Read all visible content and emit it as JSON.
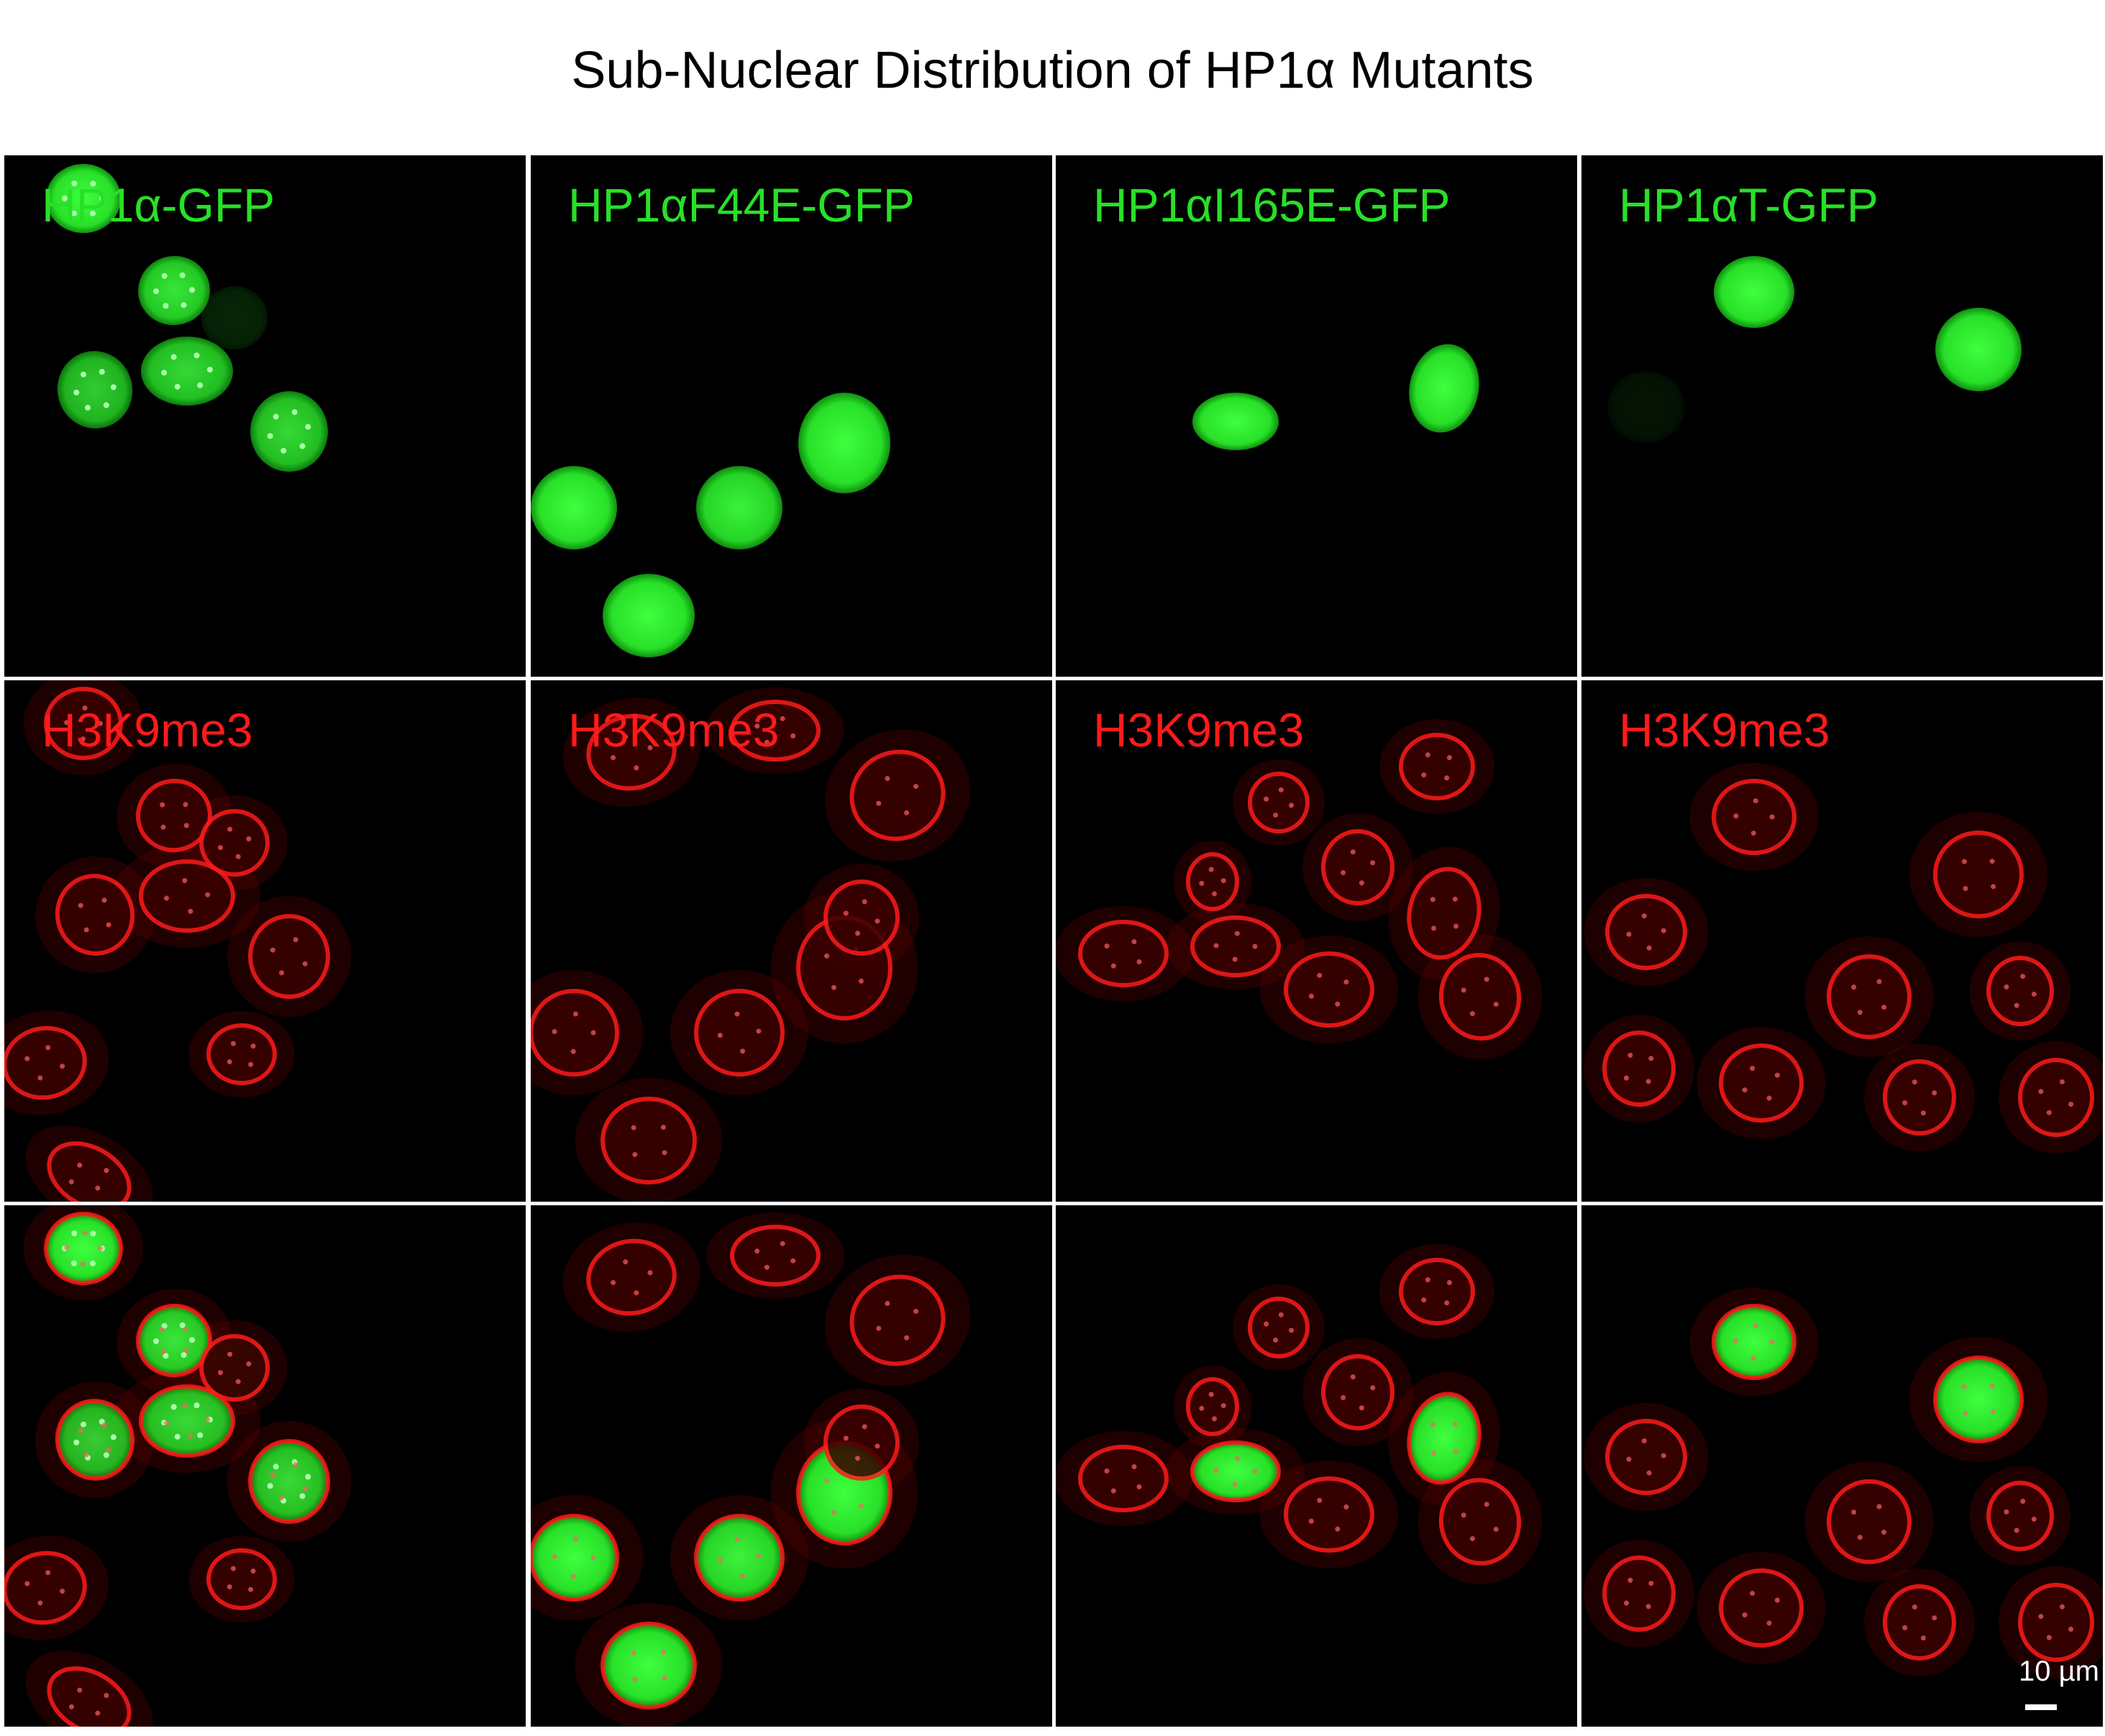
{
  "figure": {
    "title": "Sub-Nuclear Distribution of HP1α Mutants",
    "scale_bar_label": "10 µm",
    "colors": {
      "gfp": "#28e028",
      "h3k9me3": "#ff1a1a",
      "background": "#000000"
    }
  },
  "columns": [
    {
      "gfp_label": "HP1α-GFP",
      "h3_label": "H3K9me3"
    },
    {
      "gfp_label": "HP1αF44E-GFP",
      "h3_label": "H3K9me3"
    },
    {
      "gfp_label": "HP1αI165E-GFP",
      "h3_label": "H3K9me3"
    },
    {
      "gfp_label": "HP1αT-GFP",
      "h3_label": "H3K9me3"
    }
  ],
  "rows": [
    "gfp",
    "h3k9me3",
    "merge"
  ]
}
